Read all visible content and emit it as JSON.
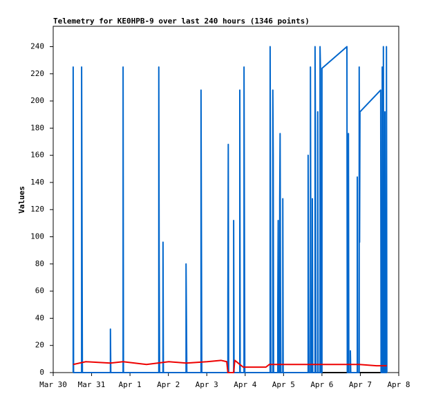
{
  "chart_data": {
    "type": "line",
    "title": "Telemetry for KE0HPB-9 over last 240 hours (1346 points)",
    "y_label": "Values",
    "xlim": [
      0,
      9
    ],
    "xticks": [
      {
        "value": 0,
        "label": "Mar 30"
      },
      {
        "value": 1,
        "label": "Mar 31"
      },
      {
        "value": 2,
        "label": "Apr 1"
      },
      {
        "value": 3,
        "label": "Apr 2"
      },
      {
        "value": 4,
        "label": "Apr 3"
      },
      {
        "value": 5,
        "label": "Apr 4"
      },
      {
        "value": 6,
        "label": "Apr 5"
      },
      {
        "value": 7,
        "label": "Apr 6"
      },
      {
        "value": 8,
        "label": "Apr 7"
      },
      {
        "value": 9,
        "label": "Apr 8"
      }
    ],
    "ylim": [
      0,
      255
    ],
    "yticks": [
      0,
      20,
      40,
      60,
      80,
      100,
      120,
      140,
      160,
      180,
      200,
      220,
      240
    ],
    "grid": false,
    "series": [
      {
        "color": "#000000",
        "x": [
          0.52,
          8.69
        ],
        "values": [
          0,
          0
        ]
      },
      {
        "color": "#0066cc",
        "x": [
          0.52,
          0.52,
          0.53,
          0.74,
          0.74,
          0.75,
          0.76,
          1.49,
          1.49,
          1.5,
          1.82,
          1.82,
          1.83,
          2.75,
          2.75,
          2.76,
          2.77,
          2.86,
          2.86,
          2.87,
          3.46,
          3.46,
          3.47,
          3.48,
          3.85,
          3.85,
          3.86,
          3.87,
          4.55,
          4.55,
          4.56,
          4.57,
          4.7,
          4.7,
          4.71,
          4.86,
          4.86,
          4.87,
          4.97,
          4.97,
          4.98,
          4.99,
          5.65,
          5.65,
          5.66,
          5.67,
          5.72,
          5.72,
          5.73,
          5.74,
          5.85,
          5.85,
          5.86,
          5.87,
          5.9,
          5.9,
          5.91,
          5.92,
          5.93,
          5.98,
          5.98,
          5.99,
          6.64,
          6.64,
          6.65,
          6.66,
          6.7,
          6.7,
          6.71,
          6.72,
          6.75,
          6.75,
          6.76,
          6.82,
          6.82,
          6.83,
          6.84,
          6.89,
          6.89,
          6.9,
          6.95,
          6.95,
          6.96,
          6.97,
          7.0,
          7.0,
          7.65,
          7.66,
          7.69,
          7.69,
          7.7,
          7.74,
          7.74,
          7.75,
          7.92,
          7.92,
          7.93,
          7.97,
          7.97,
          7.98,
          7.99,
          8.53,
          8.54,
          8.57,
          8.57,
          8.58,
          8.6,
          8.6,
          8.61,
          8.64,
          8.64,
          8.65,
          8.68,
          8.68,
          8.69
        ],
        "values": [
          0,
          225,
          0,
          0,
          225,
          112,
          0,
          0,
          32,
          0,
          0,
          225,
          0,
          0,
          225,
          80,
          0,
          0,
          96,
          0,
          0,
          80,
          40,
          0,
          0,
          208,
          104,
          0,
          0,
          56,
          168,
          0,
          0,
          112,
          0,
          0,
          208,
          0,
          0,
          225,
          112,
          0,
          0,
          240,
          120,
          0,
          0,
          208,
          160,
          0,
          0,
          48,
          112,
          0,
          0,
          128,
          176,
          64,
          0,
          0,
          128,
          0,
          0,
          160,
          64,
          0,
          0,
          225,
          80,
          0,
          0,
          128,
          0,
          0,
          240,
          176,
          0,
          0,
          192,
          0,
          0,
          240,
          225,
          0,
          0,
          224,
          240,
          0,
          0,
          176,
          0,
          0,
          16,
          0,
          0,
          144,
          0,
          0,
          225,
          96,
          192,
          208,
          0,
          0,
          225,
          0,
          0,
          240,
          0,
          0,
          192,
          0,
          0,
          240,
          0
        ]
      },
      {
        "color": "#ee0000",
        "x": [
          0.52,
          0.85,
          1.49,
          1.82,
          2.43,
          3.01,
          3.47,
          4.01,
          4.37,
          4.52,
          4.55,
          4.7,
          4.73,
          4.86,
          4.95,
          5.54,
          5.63,
          7.61,
          7.97,
          8.42,
          8.69
        ],
        "values": [
          6,
          8,
          7,
          8,
          6,
          8,
          7,
          8,
          9,
          8,
          0,
          0,
          9,
          6,
          4,
          4,
          6,
          6,
          6,
          5,
          5
        ]
      }
    ]
  }
}
